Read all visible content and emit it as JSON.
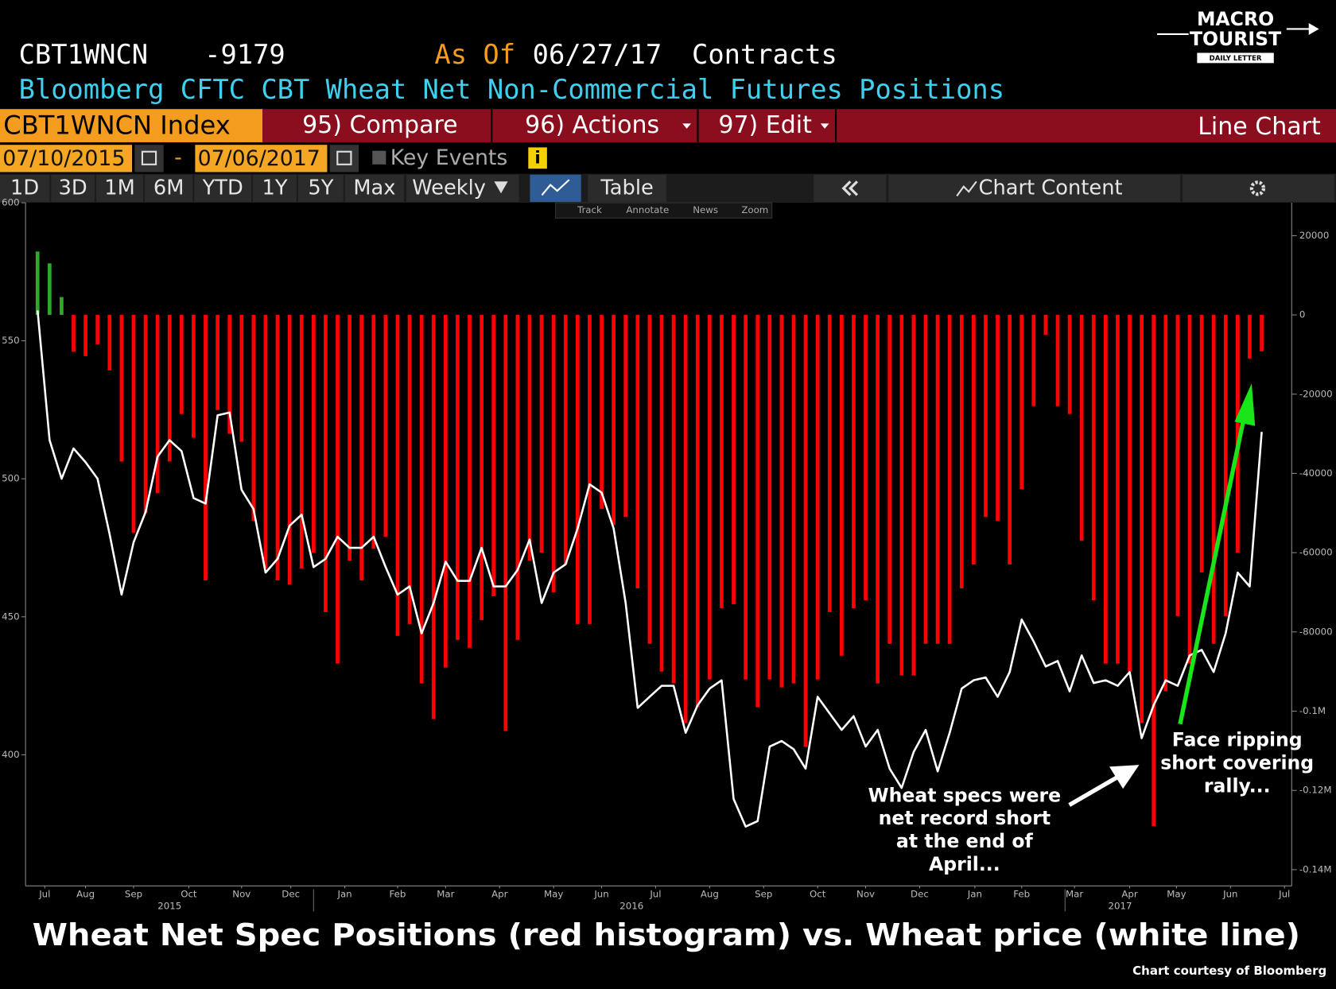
{
  "header": {
    "ticker": "CBT1WNCN",
    "last": "-9179",
    "as_of_label": "As Of",
    "as_of": "06/27/17",
    "units": "Contracts",
    "subtitle": "Bloomberg CFTC CBT Wheat Net Non-Commercial Futures Positions"
  },
  "toolbar": {
    "security": "CBT1WNCN Index",
    "menus": [
      "95) Compare",
      "96) Actions",
      "97) Edit"
    ],
    "view": "Line Chart",
    "start_date": "07/10/2015",
    "separator": "-",
    "end_date": "07/06/2017",
    "key_events": "Key Events",
    "info": "i",
    "ranges": [
      "1D",
      "3D",
      "1M",
      "6M",
      "YTD",
      "1Y",
      "5Y",
      "Max"
    ],
    "frequency": "Weekly",
    "table": "Table",
    "chart_content": "Chart Content",
    "tools": [
      "Track",
      "Annotate",
      "News",
      "Zoom"
    ]
  },
  "logo": {
    "line1": "MACRO",
    "line2": "TOURIST",
    "line3": "DAILY LETTER"
  },
  "chart_data": {
    "type": "combo",
    "xlim": [
      -1,
      104.5
    ],
    "xticks": [
      {
        "value": 0.6,
        "label": "Jul"
      },
      {
        "value": 4.0,
        "label": "Aug"
      },
      {
        "value": 8.0,
        "label": "Sep"
      },
      {
        "value": 12.6,
        "label": "Oct"
      },
      {
        "value": 17.0,
        "label": "Nov"
      },
      {
        "value": 21.1,
        "label": "Dec"
      },
      {
        "value": 25.6,
        "label": "Jan"
      },
      {
        "value": 30.0,
        "label": "Feb"
      },
      {
        "value": 34.0,
        "label": "Mar"
      },
      {
        "value": 38.5,
        "label": "Apr"
      },
      {
        "value": 43.0,
        "label": "May"
      },
      {
        "value": 47.0,
        "label": "Jun"
      },
      {
        "value": 51.5,
        "label": "Jul"
      },
      {
        "value": 56.0,
        "label": "Aug"
      },
      {
        "value": 60.5,
        "label": "Sep"
      },
      {
        "value": 65.0,
        "label": "Oct"
      },
      {
        "value": 69.0,
        "label": "Nov"
      },
      {
        "value": 73.5,
        "label": "Dec"
      },
      {
        "value": 78.1,
        "label": "Jan"
      },
      {
        "value": 82.0,
        "label": "Feb"
      },
      {
        "value": 86.4,
        "label": "Mar"
      },
      {
        "value": 91.0,
        "label": "Apr"
      },
      {
        "value": 94.9,
        "label": "May"
      },
      {
        "value": 99.4,
        "label": "Jun"
      },
      {
        "value": 103.9,
        "label": "Jul"
      }
    ],
    "year_labels": [
      {
        "value": 11.0,
        "label": "2015"
      },
      {
        "value": 49.5,
        "label": "2016"
      },
      {
        "value": 90.2,
        "label": "2017"
      }
    ],
    "ylim": [
      352.5,
      600
    ],
    "yticks": [
      400,
      450,
      500,
      550,
      600
    ],
    "y2lim": [
      -144100,
      28300
    ],
    "y2ticks": [
      20000,
      0,
      -20000,
      -40000,
      -60000,
      -80000,
      {
        "value": -100000,
        "label": "-0.1M"
      },
      {
        "value": -120000,
        "label": "-0.12M"
      },
      {
        "value": -140000,
        "label": "-0.14M"
      }
    ],
    "series": [
      {
        "type": "bar",
        "axis": "y2",
        "color": "#ff0000",
        "positive_color": "#2ea82e",
        "values": [
          16000,
          13000,
          4500,
          -9300,
          -10400,
          -7400,
          -14000,
          -37000,
          -55000,
          -50000,
          -45000,
          -37000,
          -25000,
          -31000,
          -67000,
          -24000,
          -30000,
          -32000,
          -52000,
          -64000,
          -67000,
          -68000,
          -64000,
          -60000,
          -75000,
          -88000,
          -62000,
          -67000,
          -59000,
          -56000,
          -81000,
          -78000,
          -93000,
          -102000,
          -89000,
          -82000,
          -84000,
          -77000,
          -71000,
          -105000,
          -82000,
          -62000,
          -60000,
          -70000,
          -63000,
          -78000,
          -78000,
          -49000,
          -53000,
          -51000,
          -69000,
          -83000,
          -90000,
          -93000,
          -103000,
          -99000,
          -92000,
          -74000,
          -73000,
          -92000,
          -99000,
          -92000,
          -94000,
          -93000,
          -109000,
          -92000,
          -75000,
          -86000,
          -74000,
          -72000,
          -93000,
          -83000,
          -91000,
          -91000,
          -83000,
          -83000,
          -83000,
          -69000,
          -63000,
          -51000,
          -52000,
          -63000,
          -44000,
          -23000,
          -5000,
          -23000,
          -25000,
          -57000,
          -72000,
          -88000,
          -88000,
          -90000,
          -103000,
          -129000,
          -95000,
          -76000,
          -88000,
          -65000,
          -83000,
          -76000,
          -60000,
          -11000,
          -9179
        ]
      },
      {
        "type": "line",
        "color": "#ffffff",
        "values": [
          561,
          514,
          500,
          511,
          506,
          500,
          480,
          458,
          477,
          488,
          508,
          514,
          510,
          493,
          491,
          523,
          524,
          496,
          489,
          466,
          471,
          483,
          487,
          468,
          471,
          479,
          475,
          475,
          479,
          468,
          458,
          461,
          444,
          455,
          470,
          463,
          463,
          475,
          461,
          461,
          467,
          478,
          455,
          466,
          469,
          482,
          498,
          495,
          482,
          455,
          417,
          421,
          425,
          425,
          408,
          418,
          424,
          427,
          384,
          374,
          376,
          403,
          405,
          402,
          395,
          421,
          415,
          409,
          414,
          403,
          409,
          395,
          388,
          401,
          409,
          394,
          408,
          424,
          427,
          428,
          421,
          430,
          449,
          441,
          432,
          434,
          423,
          436,
          426,
          427,
          425,
          430,
          406,
          418,
          427,
          425,
          436,
          438,
          430,
          444,
          466,
          461,
          517
        ]
      }
    ],
    "annotations": [
      [
        "Wheat specs were",
        "net record short",
        "at the end of",
        "April..."
      ],
      [
        "Face ripping",
        "short covering",
        "rally..."
      ]
    ]
  },
  "caption": "Wheat Net Spec Positions (red histogram) vs. Wheat price (white line)",
  "credit": "Chart courtesy of Bloomberg"
}
